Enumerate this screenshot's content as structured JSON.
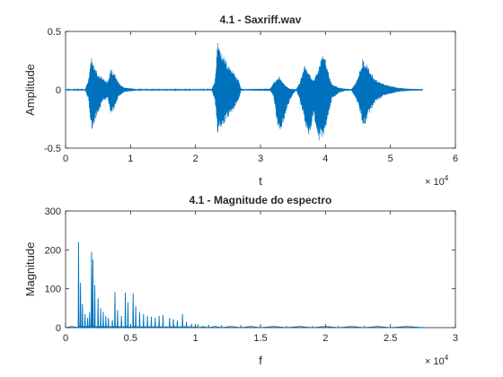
{
  "chart_data": [
    {
      "type": "line",
      "title": "4.1 - Saxriff.wav",
      "xlabel": "t",
      "ylabel": "Amplitude",
      "xlim": [
        0,
        60000
      ],
      "ylim": [
        -0.5,
        0.5
      ],
      "x_ticks": [
        0,
        10000,
        20000,
        30000,
        40000,
        50000,
        60000
      ],
      "x_tick_labels": [
        "0",
        "1",
        "2",
        "3",
        "4",
        "5",
        "6"
      ],
      "y_ticks": [
        -0.5,
        0,
        0.5
      ],
      "y_tick_labels": [
        "-0.5",
        "0",
        "0.5"
      ],
      "x_exponent_base": "× 10",
      "x_exponent_power": "4",
      "line_color": "#0072BD",
      "grid": false,
      "series": [
        {
          "envelope": {
            "x": [
              0,
              3000,
              3500,
              4000,
              4300,
              5000,
              5800,
              6500,
              6900,
              7400,
              7900,
              8200,
              9000,
              10500,
              11000,
              22500,
              23000,
              23400,
              24000,
              25000,
              26000,
              26700,
              27000,
              27500,
              31500,
              32000,
              32800,
              33500,
              34000,
              34500,
              35000,
              35500,
              36000,
              36800,
              37500,
              38200,
              39000,
              39800,
              40200,
              40600,
              41000,
              42000,
              43000,
              44000,
              45000,
              45800,
              46500,
              47500,
              49000,
              51000,
              53000,
              55000
            ],
            "upper": [
              0.005,
              0.005,
              0.08,
              0.28,
              0.22,
              0.14,
              0.1,
              0.07,
              0.18,
              0.16,
              0.1,
              0.06,
              0.02,
              0.01,
              0.005,
              0.005,
              0.08,
              0.42,
              0.32,
              0.22,
              0.14,
              0.08,
              0.01,
              0.005,
              0.01,
              0.06,
              0.12,
              0.06,
              0.03,
              0.01,
              0.005,
              0.005,
              0.06,
              0.22,
              0.14,
              0.08,
              0.2,
              0.34,
              0.22,
              0.12,
              0.05,
              0.02,
              0.01,
              0.005,
              0.1,
              0.28,
              0.2,
              0.1,
              0.05,
              0.02,
              0.008,
              0.005
            ],
            "lower": [
              -0.005,
              -0.005,
              -0.08,
              -0.36,
              -0.3,
              -0.2,
              -0.1,
              -0.07,
              -0.22,
              -0.18,
              -0.1,
              -0.06,
              -0.02,
              -0.01,
              -0.005,
              -0.005,
              -0.1,
              -0.38,
              -0.32,
              -0.24,
              -0.16,
              -0.08,
              -0.01,
              -0.005,
              -0.01,
              -0.06,
              -0.38,
              -0.3,
              -0.18,
              -0.1,
              -0.04,
              -0.005,
              -0.08,
              -0.28,
              -0.42,
              -0.22,
              -0.45,
              -0.4,
              -0.3,
              -0.2,
              -0.08,
              -0.03,
              -0.01,
              -0.005,
              -0.12,
              -0.34,
              -0.24,
              -0.12,
              -0.05,
              -0.02,
              -0.008,
              -0.005
            ]
          }
        }
      ]
    },
    {
      "type": "line",
      "title": "4.1 - Magnitude do espectro",
      "xlabel": "f",
      "ylabel": "Magnitude",
      "xlim": [
        0,
        30000
      ],
      "ylim": [
        0,
        300
      ],
      "x_ticks": [
        0,
        5000,
        10000,
        15000,
        20000,
        25000,
        30000
      ],
      "x_tick_labels": [
        "0",
        "0.5",
        "1",
        "1.5",
        "2",
        "2.5",
        "3"
      ],
      "y_ticks": [
        0,
        100,
        200,
        300
      ],
      "y_tick_labels": [
        "0",
        "100",
        "200",
        "300"
      ],
      "x_exponent_base": "× 10",
      "x_exponent_power": "4",
      "line_color": "#0072BD",
      "grid": false,
      "series": [
        {
          "peaks": {
            "x": [
              1000,
              1150,
              1300,
              1500,
              1700,
              1850,
              2000,
              2100,
              2250,
              2500,
              2700,
              2900,
              3100,
              3300,
              3600,
              3800,
              4000,
              4300,
              4600,
              4800,
              5200,
              5400,
              5700,
              6000,
              6300,
              6600,
              6900,
              7200,
              7500,
              8000,
              8300,
              8600,
              9000,
              9300,
              9700,
              10200,
              11000,
              12000,
              13500,
              15000,
              17000,
              19000,
              21000,
              23000,
              25000,
              27500
            ],
            "y": [
              220,
              115,
              60,
              35,
              25,
              40,
              195,
              175,
              110,
              75,
              50,
              40,
              30,
              25,
              20,
              92,
              45,
              30,
              90,
              65,
              88,
              55,
              40,
              35,
              30,
              28,
              25,
              30,
              32,
              25,
              22,
              18,
              35,
              15,
              10,
              8,
              7,
              6,
              6,
              5,
              4,
              4,
              3,
              3,
              2,
              1
            ]
          },
          "floor": 3
        }
      ]
    }
  ]
}
